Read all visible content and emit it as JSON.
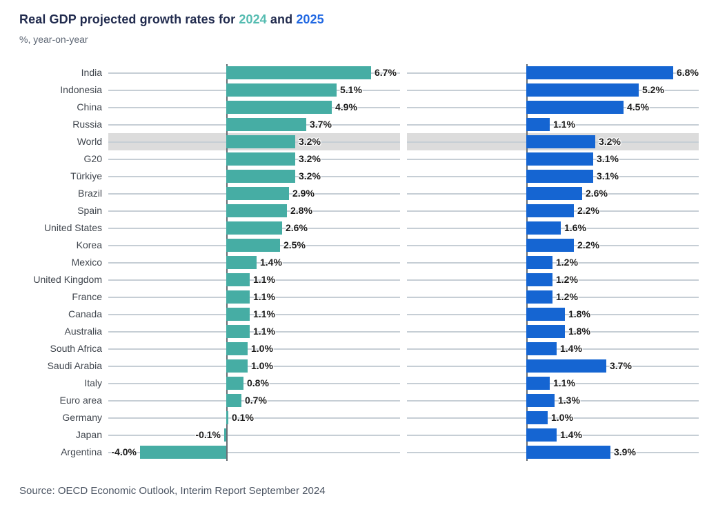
{
  "header": {
    "title_prefix": "Real GDP projected growth rates for ",
    "year_2024": "2024",
    "conjunction": " and ",
    "year_2025": "2025",
    "subtitle": "%, year-on-year"
  },
  "source": "Source: OECD Economic Outlook, Interim Report September 2024",
  "colors": {
    "bar_2024": "#46ada4",
    "bar_2025": "#1565d2",
    "title_year_2024": "#55bcb1",
    "title_year_2025": "#2168e2",
    "highlight_band": "#dcdcdc",
    "gridline": "#c6ced5",
    "axis": "#686f75"
  },
  "chart_data": {
    "type": "bar",
    "orientation": "horizontal",
    "title": "Real GDP projected growth rates for 2024 and 2025",
    "subtitle": "%, year-on-year",
    "unit": "%",
    "value_format": "one_decimal_percent",
    "grid": true,
    "legend_position": "in-title",
    "highlight_row": "World",
    "x_range_pct": [
      -5.5,
      8.1
    ],
    "categories": [
      "India",
      "Indonesia",
      "China",
      "Russia",
      "World",
      "G20",
      "Türkiye",
      "Brazil",
      "Spain",
      "United States",
      "Korea",
      "Mexico",
      "United Kingdom",
      "France",
      "Canada",
      "Australia",
      "South Africa",
      "Saudi Arabia",
      "Italy",
      "Euro area",
      "Germany",
      "Japan",
      "Argentina"
    ],
    "series": [
      {
        "name": "2024",
        "color": "#46ada4",
        "values": [
          6.7,
          5.1,
          4.9,
          3.7,
          3.2,
          3.2,
          3.2,
          2.9,
          2.8,
          2.6,
          2.5,
          1.4,
          1.1,
          1.1,
          1.1,
          1.1,
          1.0,
          1.0,
          0.8,
          0.7,
          0.1,
          -0.1,
          -4.0
        ]
      },
      {
        "name": "2025",
        "color": "#1565d2",
        "values": [
          6.8,
          5.2,
          4.5,
          1.1,
          3.2,
          3.1,
          3.1,
          2.6,
          2.2,
          1.6,
          2.2,
          1.2,
          1.2,
          1.2,
          1.8,
          1.8,
          1.4,
          3.7,
          1.1,
          1.3,
          1.0,
          1.4,
          3.9
        ]
      }
    ],
    "data_labels": {
      "2024": [
        "6.7%",
        "5.1%",
        "4.9%",
        "3.7%",
        "3.2%",
        "3.2%",
        "3.2%",
        "2.9%",
        "2.8%",
        "2.6%",
        "2.5%",
        "1.4%",
        "1.1%",
        "1.1%",
        "1.1%",
        "1.1%",
        "1.0%",
        "1.0%",
        "0.8%",
        "0.7%",
        "0.1%",
        "-0.1%",
        "-4.0%"
      ],
      "2025": [
        "6.8%",
        "5.2%",
        "4.5%",
        "1.1%",
        "3.2%",
        "3.1%",
        "3.1%",
        "2.6%",
        "2.2%",
        "1.6%",
        "2.2%",
        "1.2%",
        "1.2%",
        "1.2%",
        "1.8%",
        "1.8%",
        "1.4%",
        "3.7%",
        "1.1%",
        "1.3%",
        "1.0%",
        "1.4%",
        "3.9%"
      ]
    }
  }
}
